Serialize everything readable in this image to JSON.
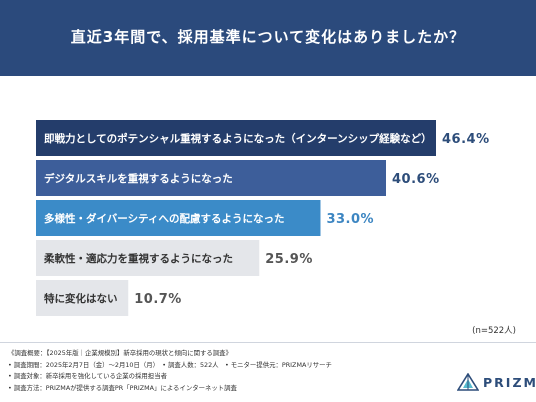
{
  "header": {
    "title": "直近3年間で、採用基準について変化はありましたか？"
  },
  "colors": {
    "header_bg": "#2b4a7c",
    "bar_colors": [
      "#243d6b",
      "#3d5e9a",
      "#3b8bc8",
      "#e4e6ea",
      "#e4e6ea"
    ],
    "label_colors": [
      "#ffffff",
      "#ffffff",
      "#ffffff",
      "#333333",
      "#333333"
    ],
    "value_colors": [
      "#2d4d7a",
      "#2d4d7a",
      "#3d86c2",
      "#555555",
      "#555555"
    ]
  },
  "chart_data": {
    "type": "bar",
    "orientation": "horizontal",
    "title": "直近3年間で、採用基準について変化はありましたか？",
    "categories": [
      "即戦力としてのポテンシャル重視するようになった（インターンシップ経験など）",
      "デジタルスキルを重視するようになった",
      "多様性・ダイバーシティへの配慮するようになった",
      "柔軟性・適応力を重視するようになった",
      "特に変化はない"
    ],
    "values": [
      46.4,
      40.6,
      33.0,
      25.9,
      10.7
    ],
    "value_labels": [
      "46.4%",
      "40.6%",
      "33.0%",
      "25.9%",
      "10.7%"
    ],
    "unit": "%",
    "xlim": [
      0,
      46.4
    ],
    "grid": false,
    "legend": "none"
  },
  "sample_size": "(n=522人)",
  "footnotes": [
    "《調査概要：【2025年版｜企業規模別】新卒採用の現状と傾向に関する調査》",
    "• 調査期間：2025年2月7日（金）〜2月10日（月）　• 調査人数：522人　• モニター提供元：PRIZMAリサーチ",
    "• 調査対象：新卒採用を強化している企業の採用担当者",
    "• 調査方法：PRIZMAが提供する調査PR「PRIZMA」によるインターネット調査"
  ],
  "logo": {
    "text": "PRIZMA",
    "icon": "prism-logo-icon"
  }
}
